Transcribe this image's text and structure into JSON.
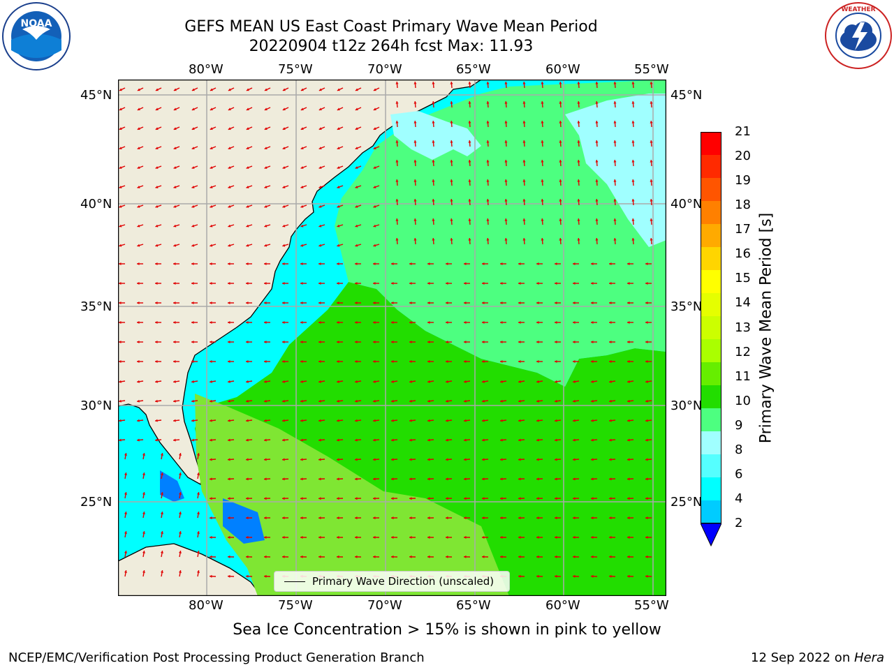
{
  "title": {
    "line1": "GEFS MEAN US East Coast Primary Wave Mean Period",
    "line2": "20220904 t12z 264h fcst   Max: 11.93"
  },
  "logos": {
    "left": "NOAA",
    "right": "NATIONAL WEATHER SERVICE"
  },
  "axes": {
    "lon_top": [
      "80°W",
      "75°W",
      "70°W",
      "65°W",
      "60°W",
      "55°W"
    ],
    "lon_bottom": [
      "80°W",
      "75°W",
      "70°W",
      "65°W",
      "60°W",
      "55°W"
    ],
    "lat_left": [
      "45°N",
      "40°N",
      "35°N",
      "30°N",
      "25°N"
    ],
    "lat_right": [
      "45°N",
      "40°N",
      "35°N",
      "30°N",
      "25°N"
    ]
  },
  "legend": {
    "label": "Primary Wave Direction (unscaled)"
  },
  "colorbar": {
    "label": "Primary Wave Mean Period [s]",
    "ticks": [
      "21",
      "20",
      "19",
      "18",
      "17",
      "16",
      "15",
      "14",
      "13",
      "12",
      "11",
      "10",
      "9",
      "8",
      "6",
      "4",
      "2"
    ],
    "colors": [
      "#ff0000",
      "#ff2a00",
      "#ff5500",
      "#ff8000",
      "#ffaa00",
      "#ffd500",
      "#ffff00",
      "#e5ff00",
      "#ccff00",
      "#aaff00",
      "#66ee00",
      "#22dd00",
      "#4dff80",
      "#a0ffff",
      "#55ffff",
      "#00ffff",
      "#00ccff",
      "#0080ff"
    ]
  },
  "subtitle": "Sea Ice Concentration > 15% is shown in pink to yellow",
  "footer": {
    "left": "NCEP/EMC/Verification Post Processing Product Generation Branch",
    "right_date": "12 Sep 2022 on ",
    "right_host": "Hera"
  }
}
